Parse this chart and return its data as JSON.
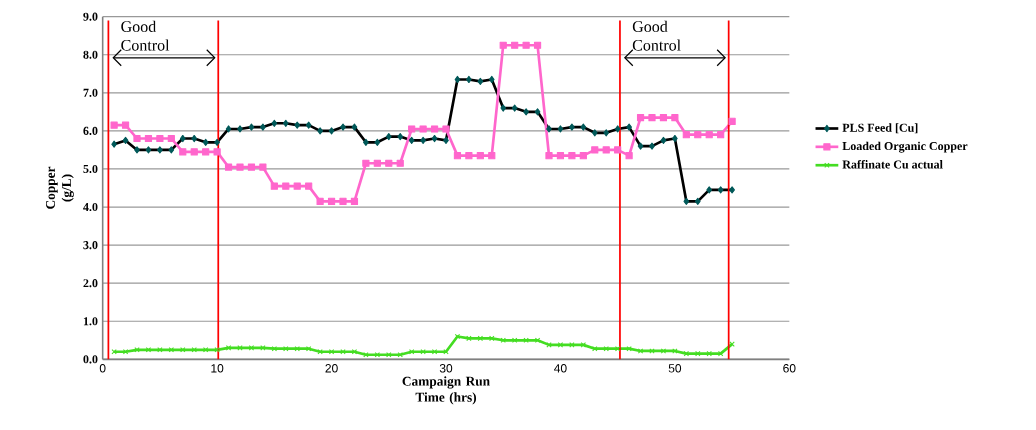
{
  "chart_data": {
    "type": "line",
    "xlabel": "Campaign Run Time (hrs)",
    "ylabel": "Copper (g/L)",
    "x": [
      1,
      2,
      3,
      4,
      5,
      6,
      7,
      8,
      9,
      10,
      11,
      12,
      13,
      14,
      15,
      16,
      17,
      18,
      19,
      20,
      21,
      22,
      23,
      24,
      25,
      26,
      27,
      28,
      29,
      30,
      31,
      32,
      33,
      34,
      35,
      36,
      37,
      38,
      39,
      40,
      41,
      42,
      43,
      44,
      45,
      46,
      47,
      48,
      49,
      50,
      51,
      52,
      53,
      54,
      55
    ],
    "series": [
      {
        "name": "PLS Feed [Cu]",
        "color": "#000000",
        "marker": "diamond",
        "values": [
          5.65,
          5.75,
          5.5,
          5.5,
          5.5,
          5.5,
          5.8,
          5.8,
          5.7,
          5.7,
          6.05,
          6.05,
          6.1,
          6.1,
          6.2,
          6.2,
          6.15,
          6.15,
          6.0,
          6.0,
          6.1,
          6.1,
          5.7,
          5.7,
          5.85,
          5.85,
          5.75,
          5.75,
          5.8,
          5.75,
          7.35,
          7.35,
          7.3,
          7.35,
          6.6,
          6.6,
          6.5,
          6.5,
          6.05,
          6.05,
          6.1,
          6.1,
          5.95,
          5.95,
          6.05,
          6.1,
          5.6,
          5.6,
          5.75,
          5.8,
          4.15,
          4.15,
          4.45,
          4.45,
          4.45
        ]
      },
      {
        "name": "Loaded Organic Copper",
        "color": "#ff66cc",
        "marker": "square",
        "values": [
          6.15,
          6.15,
          5.8,
          5.8,
          5.8,
          5.8,
          5.45,
          5.45,
          5.45,
          5.45,
          5.05,
          5.05,
          5.05,
          5.05,
          4.55,
          4.55,
          4.55,
          4.55,
          4.15,
          4.15,
          4.15,
          4.15,
          5.15,
          5.15,
          5.15,
          5.15,
          6.05,
          6.05,
          6.05,
          6.05,
          5.35,
          5.35,
          5.35,
          5.35,
          8.25,
          8.25,
          8.25,
          8.25,
          5.35,
          5.35,
          5.35,
          5.35,
          5.5,
          5.5,
          5.5,
          5.35,
          6.35,
          6.35,
          6.35,
          6.35,
          5.9,
          5.9,
          5.9,
          5.9,
          6.25
        ]
      },
      {
        "name": "Raffinate Cu actual",
        "color": "#44dd22",
        "marker": "cross",
        "values": [
          0.2,
          0.2,
          0.25,
          0.25,
          0.25,
          0.25,
          0.25,
          0.25,
          0.25,
          0.25,
          0.3,
          0.3,
          0.3,
          0.3,
          0.28,
          0.28,
          0.28,
          0.28,
          0.2,
          0.2,
          0.2,
          0.2,
          0.12,
          0.12,
          0.12,
          0.12,
          0.2,
          0.2,
          0.2,
          0.2,
          0.6,
          0.55,
          0.55,
          0.55,
          0.5,
          0.5,
          0.5,
          0.5,
          0.38,
          0.38,
          0.38,
          0.38,
          0.28,
          0.28,
          0.28,
          0.28,
          0.22,
          0.22,
          0.22,
          0.22,
          0.15,
          0.15,
          0.15,
          0.15,
          0.4
        ]
      }
    ],
    "xlim": [
      0,
      60
    ],
    "xticks": [
      0,
      10,
      20,
      30,
      40,
      50,
      60
    ],
    "ylim": [
      0,
      9
    ],
    "yticks": [
      {
        "value": 0,
        "label": "0.0"
      },
      {
        "value": 1,
        "label": "1.0"
      },
      {
        "value": 2,
        "label": "2.0"
      },
      {
        "value": 3,
        "label": "3.0"
      },
      {
        "value": 4,
        "label": "4.0"
      },
      {
        "value": 5,
        "label": "5.0"
      },
      {
        "value": 6,
        "label": "6.0"
      },
      {
        "value": 7,
        "label": "7.0"
      },
      {
        "value": 8,
        "label": "8.0"
      },
      {
        "value": 9,
        "label": "9.0"
      }
    ],
    "grid": "y",
    "legend": "right",
    "line_style": "solid",
    "ref_lines": [
      {
        "axis": "x",
        "value": 0.5,
        "color": "#ff0000"
      },
      {
        "axis": "x",
        "value": 10.1,
        "color": "#ff0000"
      },
      {
        "axis": "x",
        "value": 45.2,
        "color": "#ff0000"
      },
      {
        "axis": "x",
        "value": 54.7,
        "color": "#ff0000"
      }
    ],
    "annotations": [
      "Good Control",
      "Good Control"
    ]
  }
}
